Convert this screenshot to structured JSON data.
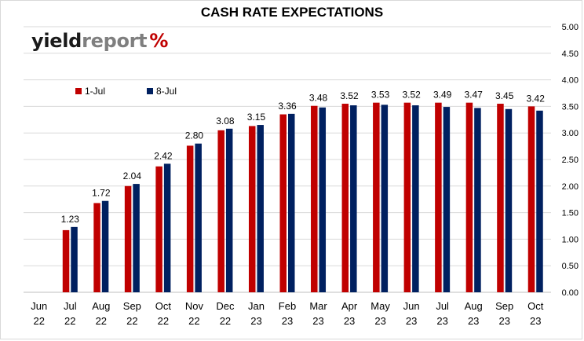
{
  "chart_data": {
    "type": "bar",
    "title": "CASH RATE EXPECTATIONS",
    "categories": [
      [
        "Jun",
        "22"
      ],
      [
        "Jul",
        "22"
      ],
      [
        "Aug",
        "22"
      ],
      [
        "Sep",
        "22"
      ],
      [
        "Oct",
        "22"
      ],
      [
        "Nov",
        "22"
      ],
      [
        "Dec",
        "22"
      ],
      [
        "Jan",
        "23"
      ],
      [
        "Feb",
        "23"
      ],
      [
        "Mar",
        "23"
      ],
      [
        "Apr",
        "23"
      ],
      [
        "May",
        "23"
      ],
      [
        "Jun",
        "23"
      ],
      [
        "Jul",
        "23"
      ],
      [
        "Aug",
        "23"
      ],
      [
        "Sep",
        "23"
      ],
      [
        "Oct",
        "23"
      ]
    ],
    "series": [
      {
        "name": "1-Jul",
        "color": "#c00000",
        "values": [
          null,
          1.17,
          1.68,
          2.0,
          2.37,
          2.76,
          3.05,
          3.13,
          3.35,
          3.51,
          3.55,
          3.57,
          3.57,
          3.57,
          3.57,
          3.55,
          3.5
        ]
      },
      {
        "name": "8-Jul",
        "color": "#002060",
        "values": [
          null,
          1.23,
          1.72,
          2.04,
          2.42,
          2.8,
          3.08,
          3.15,
          3.36,
          3.48,
          3.52,
          3.53,
          3.52,
          3.49,
          3.47,
          3.45,
          3.42
        ]
      }
    ],
    "data_labels": [
      "",
      "1.23",
      "1.72",
      "2.04",
      "2.42",
      "2.80",
      "3.08",
      "3.15",
      "3.36",
      "3.48",
      "3.52",
      "3.53",
      "3.52",
      "3.49",
      "3.47",
      "3.45",
      "3.42"
    ],
    "y_ticks": [
      "0.00",
      "0.50",
      "1.00",
      "1.50",
      "2.00",
      "2.50",
      "3.00",
      "3.50",
      "4.00",
      "4.50",
      "5.00"
    ],
    "ylim": [
      0,
      5
    ],
    "y_axis_side": "right",
    "grid": true,
    "legend_position": "top-left"
  },
  "logo": {
    "word1": "yield",
    "word2": "report",
    "symbol_a": "%",
    "symbol_b": ""
  }
}
